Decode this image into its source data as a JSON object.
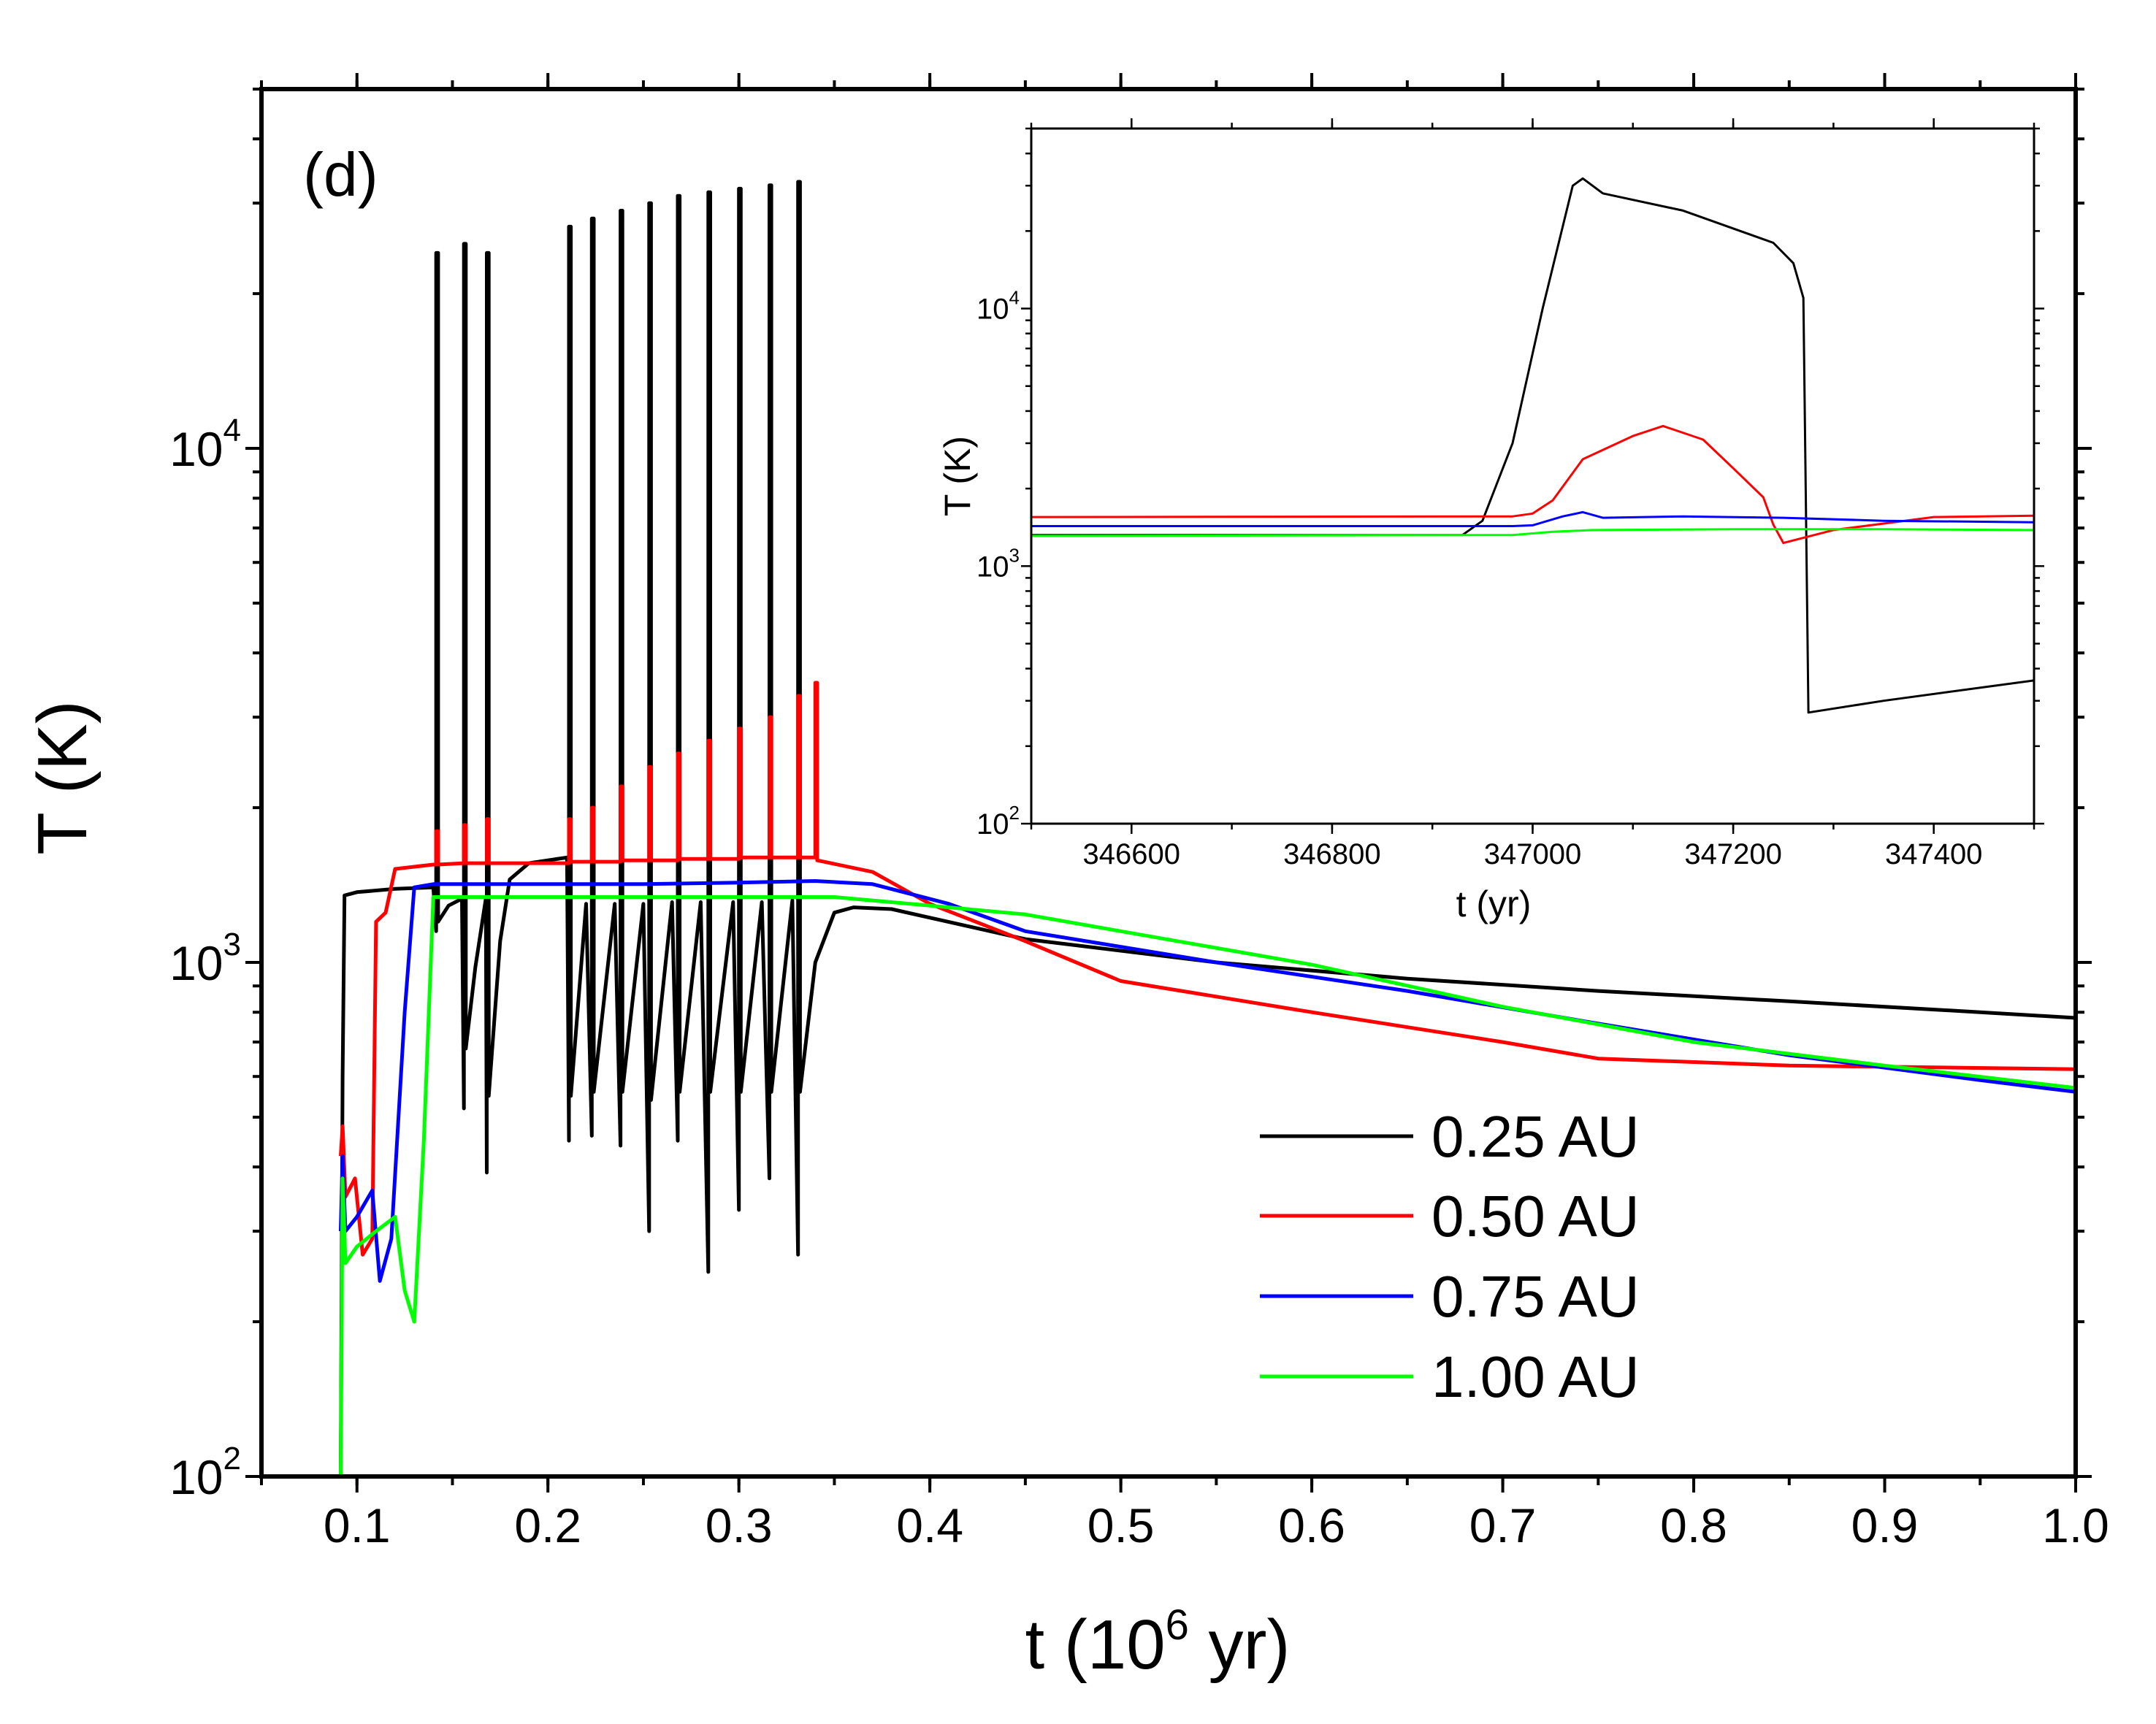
{
  "chart_data": [
    {
      "type": "line",
      "panel": "main",
      "title": "",
      "panel_label": "(d)",
      "xlabel_main": "t (10",
      "xlabel_sup": "6",
      "xlabel_end": " yr)",
      "ylabel": "T (K)",
      "xlim": [
        0.05,
        1.0
      ],
      "ylim": [
        100,
        50000
      ],
      "yscale": "log",
      "x_ticks": [
        0.1,
        0.2,
        0.3,
        0.4,
        0.5,
        0.6,
        0.7,
        0.8,
        0.9,
        1.0
      ],
      "x_tick_labels": [
        "0.1",
        "0.2",
        "0.3",
        "0.4",
        "0.5",
        "0.6",
        "0.7",
        "0.8",
        "0.9",
        "1.0"
      ],
      "y_ticks": [
        {
          "value": 100,
          "base": "10",
          "exp": "2"
        },
        {
          "value": 1000,
          "base": "10",
          "exp": "3"
        },
        {
          "value": 10000,
          "base": "10",
          "exp": "4"
        }
      ],
      "legend_position": "lower-right",
      "series": [
        {
          "name": "0.25 AU",
          "color": "#000000",
          "points": [
            [
              0.0915,
              100
            ],
            [
              0.0925,
              600
            ],
            [
              0.0935,
              1350
            ],
            [
              0.1,
              1370
            ],
            [
              0.12,
              1390
            ],
            [
              0.14,
              1400
            ],
            [
              0.1415,
              1150
            ],
            [
              0.1415,
              24000
            ],
            [
              0.1425,
              24000
            ],
            [
              0.1425,
              1200
            ],
            [
              0.148,
              1290
            ],
            [
              0.155,
              1330
            ],
            [
              0.156,
              520
            ],
            [
              0.156,
              25000
            ],
            [
              0.157,
              25000
            ],
            [
              0.157,
              680
            ],
            [
              0.162,
              980
            ],
            [
              0.1675,
              1330
            ],
            [
              0.168,
              390
            ],
            [
              0.168,
              24000
            ],
            [
              0.169,
              24000
            ],
            [
              0.169,
              550
            ],
            [
              0.175,
              1100
            ],
            [
              0.18,
              1450
            ],
            [
              0.19,
              1560
            ],
            [
              0.2,
              1580
            ],
            [
              0.21,
              1600
            ],
            [
              0.211,
              450
            ],
            [
              0.211,
              27000
            ],
            [
              0.212,
              27000
            ],
            [
              0.212,
              550
            ],
            [
              0.22,
              1300
            ],
            [
              0.223,
              460
            ],
            [
              0.223,
              28000
            ],
            [
              0.224,
              28000
            ],
            [
              0.224,
              560
            ],
            [
              0.235,
              1300
            ],
            [
              0.238,
              440
            ],
            [
              0.238,
              29000
            ],
            [
              0.239,
              29000
            ],
            [
              0.239,
              560
            ],
            [
              0.25,
              1300
            ],
            [
              0.253,
              300
            ],
            [
              0.253,
              30000
            ],
            [
              0.254,
              30000
            ],
            [
              0.254,
              540
            ],
            [
              0.265,
              1310
            ],
            [
              0.268,
              450
            ],
            [
              0.268,
              31000
            ],
            [
              0.269,
              31000
            ],
            [
              0.269,
              560
            ],
            [
              0.28,
              1310
            ],
            [
              0.284,
              250
            ],
            [
              0.284,
              31500
            ],
            [
              0.285,
              31500
            ],
            [
              0.285,
              560
            ],
            [
              0.297,
              1310
            ],
            [
              0.3,
              330
            ],
            [
              0.3,
              32000
            ],
            [
              0.301,
              32000
            ],
            [
              0.301,
              560
            ],
            [
              0.312,
              1310
            ],
            [
              0.316,
              380
            ],
            [
              0.316,
              32500
            ],
            [
              0.317,
              32500
            ],
            [
              0.317,
              560
            ],
            [
              0.328,
              1320
            ],
            [
              0.331,
              270
            ],
            [
              0.331,
              33000
            ],
            [
              0.332,
              33000
            ],
            [
              0.332,
              560
            ],
            [
              0.34,
              1000
            ],
            [
              0.35,
              1250
            ],
            [
              0.36,
              1280
            ],
            [
              0.38,
              1270
            ],
            [
              0.45,
              1110
            ],
            [
              0.55,
              1000
            ],
            [
              0.65,
              930
            ],
            [
              0.75,
              880
            ],
            [
              0.85,
              840
            ],
            [
              0.95,
              800
            ],
            [
              1.0,
              780
            ]
          ]
        },
        {
          "name": "0.50 AU",
          "color": "#ff0000",
          "points": [
            [
              0.0915,
              420
            ],
            [
              0.0925,
              480
            ],
            [
              0.094,
              350
            ],
            [
              0.099,
              380
            ],
            [
              0.103,
              270
            ],
            [
              0.108,
              290
            ],
            [
              0.11,
              1200
            ],
            [
              0.115,
              1250
            ],
            [
              0.12,
              1520
            ],
            [
              0.14,
              1550
            ],
            [
              0.1415,
              1550
            ],
            [
              0.1415,
              1800
            ],
            [
              0.1425,
              1800
            ],
            [
              0.1425,
              1550
            ],
            [
              0.156,
              1560
            ],
            [
              0.156,
              1850
            ],
            [
              0.157,
              1850
            ],
            [
              0.157,
              1560
            ],
            [
              0.168,
              1560
            ],
            [
              0.168,
              1900
            ],
            [
              0.169,
              1900
            ],
            [
              0.169,
              1560
            ],
            [
              0.2,
              1560
            ],
            [
              0.211,
              1560
            ],
            [
              0.211,
              1900
            ],
            [
              0.212,
              1900
            ],
            [
              0.212,
              1570
            ],
            [
              0.223,
              1570
            ],
            [
              0.223,
              2000
            ],
            [
              0.224,
              2000
            ],
            [
              0.224,
              1570
            ],
            [
              0.238,
              1570
            ],
            [
              0.238,
              2200
            ],
            [
              0.239,
              2200
            ],
            [
              0.239,
              1580
            ],
            [
              0.253,
              1580
            ],
            [
              0.253,
              2400
            ],
            [
              0.254,
              2400
            ],
            [
              0.254,
              1580
            ],
            [
              0.268,
              1580
            ],
            [
              0.268,
              2550
            ],
            [
              0.269,
              2550
            ],
            [
              0.269,
              1590
            ],
            [
              0.284,
              1590
            ],
            [
              0.284,
              2700
            ],
            [
              0.285,
              2700
            ],
            [
              0.285,
              1590
            ],
            [
              0.3,
              1590
            ],
            [
              0.3,
              2850
            ],
            [
              0.301,
              2850
            ],
            [
              0.301,
              1600
            ],
            [
              0.316,
              1600
            ],
            [
              0.316,
              3000
            ],
            [
              0.317,
              3000
            ],
            [
              0.317,
              1600
            ],
            [
              0.331,
              1600
            ],
            [
              0.331,
              3300
            ],
            [
              0.332,
              3300
            ],
            [
              0.332,
              1600
            ],
            [
              0.34,
              1600
            ],
            [
              0.34,
              3500
            ],
            [
              0.341,
              3500
            ],
            [
              0.341,
              1580
            ],
            [
              0.37,
              1500
            ],
            [
              0.4,
              1300
            ],
            [
              0.45,
              1100
            ],
            [
              0.5,
              920
            ],
            [
              0.6,
              800
            ],
            [
              0.7,
              700
            ],
            [
              0.75,
              650
            ],
            [
              0.85,
              630
            ],
            [
              1.0,
              620
            ]
          ]
        },
        {
          "name": "0.75 AU",
          "color": "#0000ff",
          "points": [
            [
              0.0915,
              300
            ],
            [
              0.0925,
              420
            ],
            [
              0.094,
              300
            ],
            [
              0.1,
              320
            ],
            [
              0.108,
              360
            ],
            [
              0.112,
              240
            ],
            [
              0.118,
              290
            ],
            [
              0.125,
              800
            ],
            [
              0.13,
              1400
            ],
            [
              0.14,
              1420
            ],
            [
              0.2,
              1420
            ],
            [
              0.25,
              1420
            ],
            [
              0.3,
              1430
            ],
            [
              0.34,
              1440
            ],
            [
              0.37,
              1420
            ],
            [
              0.41,
              1300
            ],
            [
              0.45,
              1150
            ],
            [
              0.55,
              1000
            ],
            [
              0.65,
              880
            ],
            [
              0.75,
              760
            ],
            [
              0.85,
              660
            ],
            [
              0.95,
              590
            ],
            [
              1.0,
              560
            ]
          ]
        },
        {
          "name": "1.00 AU",
          "color": "#00ff00",
          "points": [
            [
              0.0915,
              100
            ],
            [
              0.0925,
              380
            ],
            [
              0.094,
              260
            ],
            [
              0.1,
              280
            ],
            [
              0.11,
              300
            ],
            [
              0.12,
              320
            ],
            [
              0.125,
              230
            ],
            [
              0.13,
              200
            ],
            [
              0.135,
              450
            ],
            [
              0.14,
              1340
            ],
            [
              0.2,
              1340
            ],
            [
              0.3,
              1340
            ],
            [
              0.35,
              1340
            ],
            [
              0.4,
              1290
            ],
            [
              0.45,
              1240
            ],
            [
              0.5,
              1150
            ],
            [
              0.6,
              990
            ],
            [
              0.7,
              820
            ],
            [
              0.8,
              700
            ],
            [
              0.9,
              630
            ],
            [
              1.0,
              570
            ]
          ]
        }
      ],
      "legend": [
        "0.25 AU",
        "0.50 AU",
        "0.75 AU",
        "1.00 AU"
      ]
    },
    {
      "type": "line",
      "panel": "inset",
      "title": "",
      "xlabel": "t (yr)",
      "ylabel": "T (K)",
      "xlim": [
        346500,
        347500
      ],
      "ylim": [
        100,
        50000
      ],
      "yscale": "log",
      "x_ticks": [
        346600,
        346800,
        347000,
        347200,
        347400
      ],
      "x_tick_labels": [
        "346600",
        "346800",
        "347000",
        "347200",
        "347400"
      ],
      "y_ticks": [
        {
          "value": 100,
          "base": "10",
          "exp": "2"
        },
        {
          "value": 1000,
          "base": "10",
          "exp": "3"
        },
        {
          "value": 10000,
          "base": "10",
          "exp": "4"
        }
      ],
      "series": [
        {
          "name": "0.25 AU",
          "color": "#000000",
          "points": [
            [
              346500,
              1320
            ],
            [
              346930,
              1320
            ],
            [
              346950,
              1500
            ],
            [
              346980,
              3000
            ],
            [
              347010,
              10000
            ],
            [
              347040,
              30000
            ],
            [
              347050,
              32000
            ],
            [
              347070,
              28000
            ],
            [
              347150,
              24000
            ],
            [
              347240,
              18000
            ],
            [
              347260,
              15000
            ],
            [
              347270,
              11000
            ],
            [
              347275,
              270
            ],
            [
              347350,
              300
            ],
            [
              347500,
              360
            ]
          ]
        },
        {
          "name": "0.50 AU",
          "color": "#ff0000",
          "points": [
            [
              346500,
              1550
            ],
            [
              346980,
              1560
            ],
            [
              347000,
              1600
            ],
            [
              347020,
              1800
            ],
            [
              347050,
              2600
            ],
            [
              347100,
              3200
            ],
            [
              347130,
              3500
            ],
            [
              347170,
              3100
            ],
            [
              347200,
              2400
            ],
            [
              347230,
              1850
            ],
            [
              347240,
              1450
            ],
            [
              347250,
              1230
            ],
            [
              347300,
              1380
            ],
            [
              347400,
              1550
            ],
            [
              347500,
              1570
            ]
          ]
        },
        {
          "name": "0.75 AU",
          "color": "#0000ff",
          "points": [
            [
              346500,
              1430
            ],
            [
              346980,
              1430
            ],
            [
              347000,
              1440
            ],
            [
              347030,
              1560
            ],
            [
              347050,
              1620
            ],
            [
              347070,
              1540
            ],
            [
              347150,
              1560
            ],
            [
              347250,
              1540
            ],
            [
              347350,
              1500
            ],
            [
              347500,
              1480
            ]
          ]
        },
        {
          "name": "1.00 AU",
          "color": "#00ff00",
          "points": [
            [
              346500,
              1310
            ],
            [
              346980,
              1320
            ],
            [
              347020,
              1360
            ],
            [
              347060,
              1380
            ],
            [
              347200,
              1390
            ],
            [
              347350,
              1390
            ],
            [
              347500,
              1380
            ]
          ]
        }
      ]
    }
  ]
}
